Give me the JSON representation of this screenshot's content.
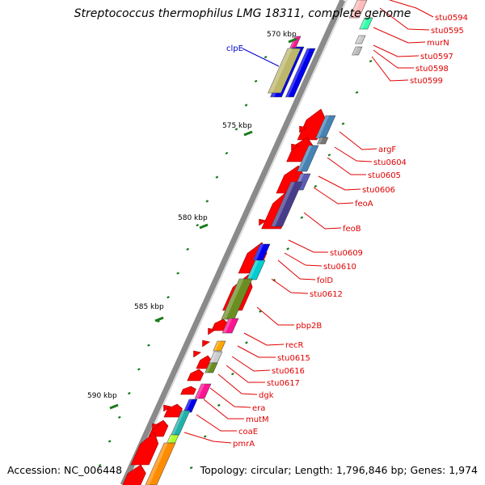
{
  "title": "Streptococcus thermophilus LMG 18311, complete genome",
  "accession": "Accession: NC_006448",
  "summary": "Topology: circular; Length: 1,796,846 bp; Genes: 1,974",
  "ticks": [
    {
      "label": "570 kbp"
    },
    {
      "label": "575 kbp"
    },
    {
      "label": "580 kbp"
    },
    {
      "label": "585 kbp"
    },
    {
      "label": "590 kbp"
    }
  ],
  "colors": {
    "gene_label": "#e00000",
    "cds_arrow": "#ff0000",
    "tick": "#1a7a1a",
    "backbone": "#888888",
    "clpE_label": "#0000cc"
  },
  "genes": [
    {
      "label": "stu0594",
      "color": "#ffbbbb"
    },
    {
      "label": "stu0595",
      "color": "#33ffaa"
    },
    {
      "label": "murN",
      "color": "#cccccc"
    },
    {
      "label": "stu0597",
      "color": "#bbbbbb"
    },
    {
      "label": "stu0598",
      "color": "#ff0000"
    },
    {
      "label": "stu0599",
      "color": "#ff0000"
    },
    {
      "label": "clpE",
      "color": "#0000ee"
    },
    {
      "label": "argF",
      "color": "#4682b4"
    },
    {
      "label": "stu0604",
      "color": "#777777"
    },
    {
      "label": "stu0605",
      "color": "#4682b4"
    },
    {
      "label": "stu0606",
      "color": "#ff0000"
    },
    {
      "label": "feoA",
      "color": "#5c5cb8"
    },
    {
      "label": "feoB",
      "color": "#483d8b"
    },
    {
      "label": "stu0609",
      "color": "#ff0000"
    },
    {
      "label": "stu0610",
      "color": "#0000ee"
    },
    {
      "label": "folD",
      "color": "#00ced1"
    },
    {
      "label": "stu0612",
      "color": "#6b8e23"
    },
    {
      "label": "pbp2B",
      "color": "#ff1493"
    },
    {
      "label": "recR",
      "color": "#ffa500"
    },
    {
      "label": "stu0615",
      "color": "#cccccc"
    },
    {
      "label": "stu0616",
      "color": "#6b8e23"
    },
    {
      "label": "stu0617",
      "color": "#ff1493"
    },
    {
      "label": "dgk",
      "color": "#ff0000"
    },
    {
      "label": "era",
      "color": "#0000ee"
    },
    {
      "label": "mutM",
      "color": "#20b2aa"
    },
    {
      "label": "coaE",
      "color": "#adff2f"
    },
    {
      "label": "pmrA",
      "color": "#ff8c00"
    }
  ]
}
